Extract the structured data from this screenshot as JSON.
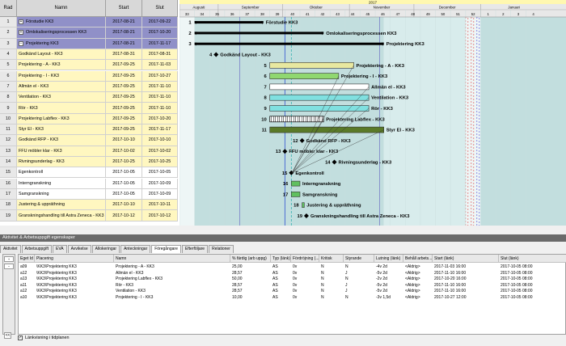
{
  "grid": {
    "headers": {
      "rad": "Rad",
      "namn": "Namn",
      "start": "Start",
      "slut": "Slut"
    },
    "rows": [
      {
        "n": "1",
        "name": "Förstudie KK3",
        "start": "2017-08-21",
        "end": "2017-09-22",
        "kind": "summary",
        "tog": "+"
      },
      {
        "n": "2",
        "name": "Omlokaliseringsprocessen KK3",
        "start": "2017-08-21",
        "end": "2017-10-20",
        "kind": "summary",
        "tog": "+"
      },
      {
        "n": "3",
        "name": "Projektering KK3",
        "start": "2017-08-21",
        "end": "2017-11-17",
        "kind": "summary",
        "tog": "−"
      },
      {
        "n": "4",
        "name": "Godkänd Layout - KK3",
        "start": "2017-08-31",
        "end": "2017-08-31",
        "kind": "yellow"
      },
      {
        "n": "5",
        "name": "Projektering - A - KK3",
        "start": "2017-09-25",
        "end": "2017-11-03",
        "kind": "yellow"
      },
      {
        "n": "6",
        "name": "Projektering - I - KK3",
        "start": "2017-09-25",
        "end": "2017-10-27",
        "kind": "yellow"
      },
      {
        "n": "7",
        "name": "Allmän el - KK3",
        "start": "2017-09-25",
        "end": "2017-11-10",
        "kind": "yellow"
      },
      {
        "n": "8",
        "name": "Ventilation - KK3",
        "start": "2017-09-25",
        "end": "2017-11-10",
        "kind": "yellow"
      },
      {
        "n": "9",
        "name": "Rör - KK3",
        "start": "2017-09-25",
        "end": "2017-11-10",
        "kind": "yellow"
      },
      {
        "n": "10",
        "name": "Projektering Labflex - KK3",
        "start": "2017-09-25",
        "end": "2017-10-20",
        "kind": "yellow"
      },
      {
        "n": "11",
        "name": "Styr El - KK3",
        "start": "2017-09-25",
        "end": "2017-11-17",
        "kind": "yellow"
      },
      {
        "n": "12",
        "name": "Godkänd RFP - KK3",
        "start": "2017-10-10",
        "end": "2017-10-10",
        "kind": "yellow"
      },
      {
        "n": "13",
        "name": "FFU möbler klar - KK3",
        "start": "2017-10-02",
        "end": "2017-10-02",
        "kind": "yellow"
      },
      {
        "n": "14",
        "name": "Rivningsunderlag - KK3",
        "start": "2017-10-25",
        "end": "2017-10-25",
        "kind": "yellow"
      },
      {
        "n": "15",
        "name": "Egenkontroll",
        "start": "2017-10-05",
        "end": "2017-10-05",
        "kind": "white"
      },
      {
        "n": "16",
        "name": "Interngranskning",
        "start": "2017-10-05",
        "end": "2017-10-09",
        "kind": "white"
      },
      {
        "n": "17",
        "name": "Samgranskning",
        "start": "2017-10-05",
        "end": "2017-10-09",
        "kind": "white"
      },
      {
        "n": "18",
        "name": "Justering & uppräthning",
        "start": "2017-10-10",
        "end": "2017-10-11",
        "kind": "yellow"
      },
      {
        "n": "19",
        "name": "Granskningshandling till Astra Zeneca - KK3",
        "start": "2017-10-12",
        "end": "2017-10-12",
        "kind": "yellow"
      }
    ]
  },
  "timescale": {
    "year": "2017",
    "months": [
      "Augusti",
      "September",
      "Oktober",
      "November",
      "December",
      "Januari"
    ],
    "weeks": [
      "33",
      "34",
      "35",
      "36",
      "37",
      "38",
      "39",
      "40",
      "41",
      "42",
      "43",
      "44",
      "45",
      "46",
      "47",
      "48",
      "49",
      "50",
      "51",
      "52",
      "1",
      "2",
      "3",
      "4"
    ]
  },
  "bars": [
    {
      "n": "1",
      "label": "Förstudie KK3"
    },
    {
      "n": "2",
      "label": "Omlokaliseringsprocessen KK3"
    },
    {
      "n": "3",
      "label": "Projektering KK3"
    },
    {
      "n": "4",
      "label": "Godkänd Layout - KK3"
    },
    {
      "n": "5",
      "label": "Projektering - A - KK3"
    },
    {
      "n": "6",
      "label": "Projektering - I - KK3"
    },
    {
      "n": "7",
      "label": "Allmän el - KK3"
    },
    {
      "n": "8",
      "label": "Ventilation - KK3"
    },
    {
      "n": "9",
      "label": "Rör - KK3"
    },
    {
      "n": "10",
      "label": "Projektering Labflex - KK3"
    },
    {
      "n": "11",
      "label": "Styr El - KK3"
    },
    {
      "n": "12",
      "label": "Godkänd RFP - KK3"
    },
    {
      "n": "13",
      "label": "FFU möbler klar - KK3"
    },
    {
      "n": "14",
      "label": "Rivningsunderlag - KK3"
    },
    {
      "n": "15",
      "label": "Egenkontroll"
    },
    {
      "n": "16",
      "label": "Interngranskning"
    },
    {
      "n": "17",
      "label": "Samgranskning"
    },
    {
      "n": "18",
      "label": "Justering & uppräthning"
    },
    {
      "n": "19",
      "label": "Granskningshandling till Astra Zeneca - KK3"
    }
  ],
  "panel": {
    "title": "Aktivitet & Arbetsuppgift egenskaper",
    "tabs": [
      "Aktivitet",
      "Arbetsuppgift",
      "EVA",
      "Avvikelse",
      "Allokeringar",
      "Anteckningar",
      "Föregångare",
      "Efterföljare",
      "Relationer"
    ],
    "active_tab": "Föregångare",
    "columns": [
      "Eget Id",
      "Placering",
      "Namn",
      "% färdig (arb uppg)",
      "Typ (länk)",
      "Fördröjning (...",
      "Kritisk",
      "Styrande",
      "Lutning (länk)",
      "Behåll arbets...",
      "Start (länk)",
      "Slut (länk)"
    ],
    "rows": [
      [
        "a09",
        "\\KK3\\Projektering KK3",
        "Projektering - A - KK3",
        "25,00",
        "AS",
        "0v",
        "N",
        "N",
        "-4v 2d",
        "<Aldrig>",
        "2017-11-03 16:00",
        "2017-10-05 08:00"
      ],
      [
        "a12",
        "\\KK3\\Projektering KK3",
        "Allmän el - KK3",
        "28,57",
        "AS",
        "0v",
        "N",
        "J",
        "-5v 2d",
        "<Aldrig>",
        "2017-11-10 16:00",
        "2017-10-05 08:00"
      ],
      [
        "a13",
        "\\KK3\\Projektering KK3",
        "Projektering Labflex - KK3",
        "50,00",
        "AS",
        "0v",
        "N",
        "N",
        "-2v 2d",
        "<Aldrig>",
        "2017-10-20 16:00",
        "2017-10-05 08:00"
      ],
      [
        "a11",
        "\\KK3\\Projektering KK3",
        "Rör - KK3",
        "28,57",
        "AS",
        "0v",
        "N",
        "J",
        "-5v 2d",
        "<Aldrig>",
        "2017-11-10 16:00",
        "2017-10-05 08:00"
      ],
      [
        "a12",
        "\\KK3\\Projektering KK3",
        "Ventilation - KK3",
        "28,57",
        "AS",
        "0v",
        "N",
        "J",
        "-5v 2d",
        "<Aldrig>",
        "2017-11-10 16:00",
        "2017-10-05 08:00"
      ],
      [
        "a10",
        "\\KK3\\Projektering KK3",
        "Projektering - I - KK3",
        "10,00",
        "AS",
        "0v",
        "N",
        "N",
        "-3v 1,5d",
        "<Aldrig>",
        "2017-10-27 12:00",
        "2017-10-05 08:00"
      ]
    ],
    "footer_checkbox": "Länkvisning i tidplanen",
    "collapse_label": "<<"
  }
}
